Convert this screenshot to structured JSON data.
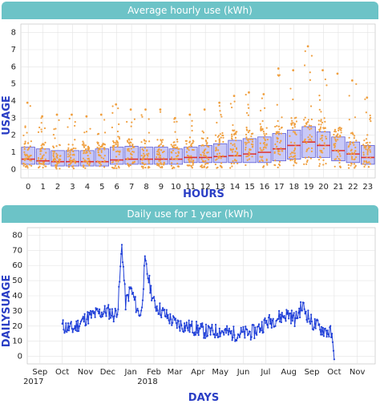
{
  "charts": [
    {
      "panel_title": "Average hourly use (kWh)",
      "xlabel": "HOURS",
      "ylabel": "USAGE"
    },
    {
      "panel_title": "Daily use for 1 year (kWh)",
      "xlabel": "DAYS",
      "ylabel": "DAILYSUAGE"
    }
  ],
  "colors": {
    "header": "#6cc3c7",
    "box_fill": "#c9c9f7",
    "box_edge": "#5b5bd6",
    "median": "#e0312a",
    "points": "#f0a040",
    "line": "#1f3fd8",
    "axis_title": "#2a3ec5"
  },
  "chart_data": [
    {
      "type": "box",
      "title": "Average hourly use (kWh)",
      "xlabel": "HOURS",
      "ylabel": "USAGE",
      "categories": [
        "0",
        "1",
        "2",
        "3",
        "4",
        "5",
        "6",
        "7",
        "8",
        "9",
        "10",
        "11",
        "12",
        "13",
        "14",
        "15",
        "16",
        "17",
        "18",
        "19",
        "20",
        "21",
        "22",
        "23"
      ],
      "yticks": [
        0,
        1,
        2,
        3,
        4,
        5,
        6,
        7,
        8
      ],
      "ylim": [
        -0.5,
        8.5
      ],
      "grid": true,
      "q1": [
        0.3,
        0.3,
        0.2,
        0.2,
        0.2,
        0.2,
        0.3,
        0.3,
        0.3,
        0.3,
        0.3,
        0.4,
        0.4,
        0.4,
        0.4,
        0.4,
        0.4,
        0.5,
        0.6,
        0.7,
        0.7,
        0.5,
        0.4,
        0.3
      ],
      "median": [
        0.6,
        0.5,
        0.45,
        0.45,
        0.45,
        0.45,
        0.55,
        0.6,
        0.6,
        0.6,
        0.6,
        0.7,
        0.7,
        0.75,
        0.8,
        0.9,
        1.0,
        1.2,
        1.4,
        1.6,
        1.4,
        1.1,
        0.9,
        0.7
      ],
      "q3": [
        1.3,
        1.2,
        1.1,
        1.1,
        1.1,
        1.2,
        1.3,
        1.35,
        1.3,
        1.3,
        1.2,
        1.3,
        1.4,
        1.5,
        1.7,
        1.8,
        1.9,
        2.1,
        2.3,
        2.5,
        2.2,
        1.9,
        1.6,
        1.4
      ],
      "max": [
        3.9,
        3.1,
        3.2,
        3.2,
        3.1,
        3.2,
        3.8,
        3.5,
        3.5,
        3.5,
        3.0,
        3.2,
        3.5,
        3.9,
        4.3,
        4.5,
        4.4,
        5.9,
        5.8,
        7.2,
        5.8,
        5.6,
        5.2,
        4.2
      ]
    },
    {
      "type": "line",
      "title": "Daily use for 1 year (kWh)",
      "xlabel": "DAYS",
      "ylabel": "DAILYSUAGE",
      "x_tick_labels": [
        "Sep",
        "Oct",
        "Nov",
        "Dec",
        "Jan",
        "Feb",
        "Mar",
        "Apr",
        "May",
        "Jun",
        "Jul",
        "Aug",
        "Sep",
        "Oct",
        "Nov"
      ],
      "x_year_labels": [
        {
          "at": "Sep",
          "text": "2017"
        },
        {
          "at": "Feb",
          "text": "2018"
        }
      ],
      "yticks": [
        0,
        10,
        20,
        30,
        40,
        50,
        60,
        70,
        80
      ],
      "ylim": [
        -5,
        85
      ],
      "grid": true,
      "x": [
        "2017-10-01",
        "2017-10-15",
        "2017-11-01",
        "2017-11-15",
        "2017-12-01",
        "2017-12-10",
        "2017-12-15",
        "2017-12-20",
        "2017-12-25",
        "2018-01-01",
        "2018-01-10",
        "2018-01-15",
        "2018-01-20",
        "2018-02-01",
        "2018-02-15",
        "2018-03-01",
        "2018-03-15",
        "2018-04-01",
        "2018-04-15",
        "2018-05-01",
        "2018-05-15",
        "2018-06-01",
        "2018-06-15",
        "2018-07-01",
        "2018-07-15",
        "2018-08-01",
        "2018-08-10",
        "2018-08-15",
        "2018-08-20",
        "2018-09-01",
        "2018-09-15",
        "2018-09-28",
        "2018-10-01"
      ],
      "y": [
        20,
        18,
        25,
        28,
        30,
        27,
        33,
        74,
        35,
        45,
        30,
        28,
        62,
        35,
        28,
        22,
        20,
        18,
        16,
        17,
        15,
        15,
        16,
        22,
        25,
        28,
        24,
        30,
        33,
        22,
        18,
        15,
        -2
      ]
    }
  ]
}
